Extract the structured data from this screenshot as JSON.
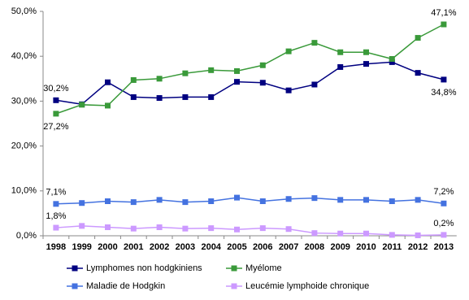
{
  "chart_data": {
    "type": "line",
    "categories": [
      "1998",
      "1999",
      "2000",
      "2001",
      "2002",
      "2003",
      "2004",
      "2005",
      "2006",
      "2007",
      "2008",
      "2009",
      "2010",
      "2011",
      "2012",
      "2013"
    ],
    "ylim": [
      0,
      50
    ],
    "yticks": [
      {
        "value": 0,
        "label": "0,0%"
      },
      {
        "value": 10,
        "label": "10,0%"
      },
      {
        "value": 20,
        "label": "20,0%"
      },
      {
        "value": 30,
        "label": "30,0%"
      },
      {
        "value": 40,
        "label": "40,0%"
      },
      {
        "value": 50,
        "label": "50,0%"
      }
    ],
    "series": [
      {
        "name": "Lymphomes non hodgkiniens",
        "color": "#000080",
        "values": [
          30.2,
          29.3,
          34.2,
          30.9,
          30.7,
          30.9,
          30.9,
          34.3,
          34.1,
          32.4,
          33.7,
          37.6,
          38.3,
          38.7,
          36.3,
          34.8
        ],
        "value_labels": [
          "30,2%",
          null,
          null,
          null,
          null,
          null,
          null,
          null,
          null,
          null,
          null,
          null,
          null,
          null,
          null,
          "34,8%"
        ]
      },
      {
        "name": "Myélome",
        "color": "#3a9a3a",
        "values": [
          27.2,
          29.2,
          29.0,
          34.7,
          35.0,
          36.2,
          36.9,
          36.7,
          38.0,
          41.1,
          43.0,
          40.9,
          40.9,
          39.4,
          44.1,
          47.1
        ],
        "value_labels": [
          "27,2%",
          null,
          null,
          null,
          null,
          null,
          null,
          null,
          null,
          null,
          null,
          null,
          null,
          null,
          null,
          "47,1%"
        ]
      },
      {
        "name": "Maladie de Hodgkin",
        "color": "#4472e0",
        "values": [
          7.1,
          7.3,
          7.7,
          7.5,
          8.0,
          7.5,
          7.7,
          8.5,
          7.7,
          8.2,
          8.4,
          8.0,
          8.0,
          7.7,
          8.0,
          7.2
        ],
        "value_labels": [
          "7,1%",
          null,
          null,
          null,
          null,
          null,
          null,
          null,
          null,
          null,
          null,
          null,
          null,
          null,
          null,
          "7,2%"
        ]
      },
      {
        "name": "Leucémie lymphoide chronique",
        "color": "#cc99ff",
        "values": [
          1.8,
          2.2,
          1.9,
          1.6,
          1.9,
          1.6,
          1.7,
          1.4,
          1.7,
          1.5,
          0.6,
          0.5,
          0.5,
          0.2,
          0.1,
          0.2
        ],
        "value_labels": [
          "1,8%",
          null,
          null,
          null,
          null,
          null,
          null,
          null,
          null,
          null,
          null,
          null,
          null,
          null,
          null,
          "0,2%"
        ]
      }
    ]
  }
}
